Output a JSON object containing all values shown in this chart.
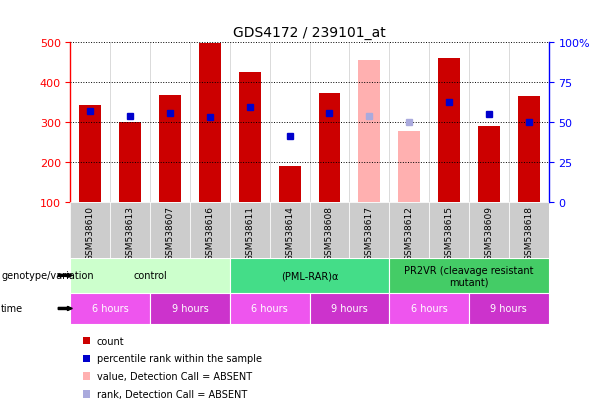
{
  "title": "GDS4172 / 239101_at",
  "samples": [
    "GSM538610",
    "GSM538613",
    "GSM538607",
    "GSM538616",
    "GSM538611",
    "GSM538614",
    "GSM538608",
    "GSM538617",
    "GSM538612",
    "GSM538615",
    "GSM538609",
    "GSM538618"
  ],
  "counts": [
    343,
    301,
    369,
    498,
    425,
    191,
    374,
    null,
    null,
    462,
    290,
    365
  ],
  "counts_absent": [
    null,
    null,
    null,
    null,
    null,
    null,
    null,
    455,
    278,
    null,
    null,
    null
  ],
  "percentile_ranks": [
    328,
    315,
    323,
    313,
    338,
    265,
    323,
    null,
    null,
    350,
    320,
    300
  ],
  "percentile_ranks_absent": [
    null,
    null,
    null,
    null,
    null,
    null,
    null,
    315,
    300,
    null,
    null,
    null
  ],
  "ylim_left": [
    100,
    500
  ],
  "ylim_right": [
    0,
    100
  ],
  "yticks_left": [
    100,
    200,
    300,
    400,
    500
  ],
  "yticks_right": [
    0,
    25,
    50,
    75,
    100
  ],
  "ytick_labels_right": [
    "0",
    "25",
    "50",
    "75",
    "100%"
  ],
  "bar_color": "#cc0000",
  "bar_color_absent": "#ffb0b0",
  "dot_color": "#0000cc",
  "dot_color_absent": "#aaaadd",
  "groups": [
    {
      "label": "control",
      "start": 0,
      "end": 4,
      "color": "#ccffcc"
    },
    {
      "label": "(PML-RAR)α",
      "start": 4,
      "end": 8,
      "color": "#44dd88"
    },
    {
      "label": "PR2VR (cleavage resistant\nmutant)",
      "start": 8,
      "end": 12,
      "color": "#44cc66"
    }
  ],
  "time_groups": [
    {
      "label": "6 hours",
      "start": 0,
      "end": 2,
      "color": "#ee55ee"
    },
    {
      "label": "9 hours",
      "start": 2,
      "end": 4,
      "color": "#cc33cc"
    },
    {
      "label": "6 hours",
      "start": 4,
      "end": 6,
      "color": "#ee55ee"
    },
    {
      "label": "9 hours",
      "start": 6,
      "end": 8,
      "color": "#cc33cc"
    },
    {
      "label": "6 hours",
      "start": 8,
      "end": 10,
      "color": "#ee55ee"
    },
    {
      "label": "9 hours",
      "start": 10,
      "end": 12,
      "color": "#cc33cc"
    }
  ],
  "genotype_label": "genotype/variation",
  "time_label": "time",
  "legend_items": [
    {
      "label": "count",
      "color": "#cc0000"
    },
    {
      "label": "percentile rank within the sample",
      "color": "#0000cc"
    },
    {
      "label": "value, Detection Call = ABSENT",
      "color": "#ffb0b0"
    },
    {
      "label": "rank, Detection Call = ABSENT",
      "color": "#aaaadd"
    }
  ]
}
